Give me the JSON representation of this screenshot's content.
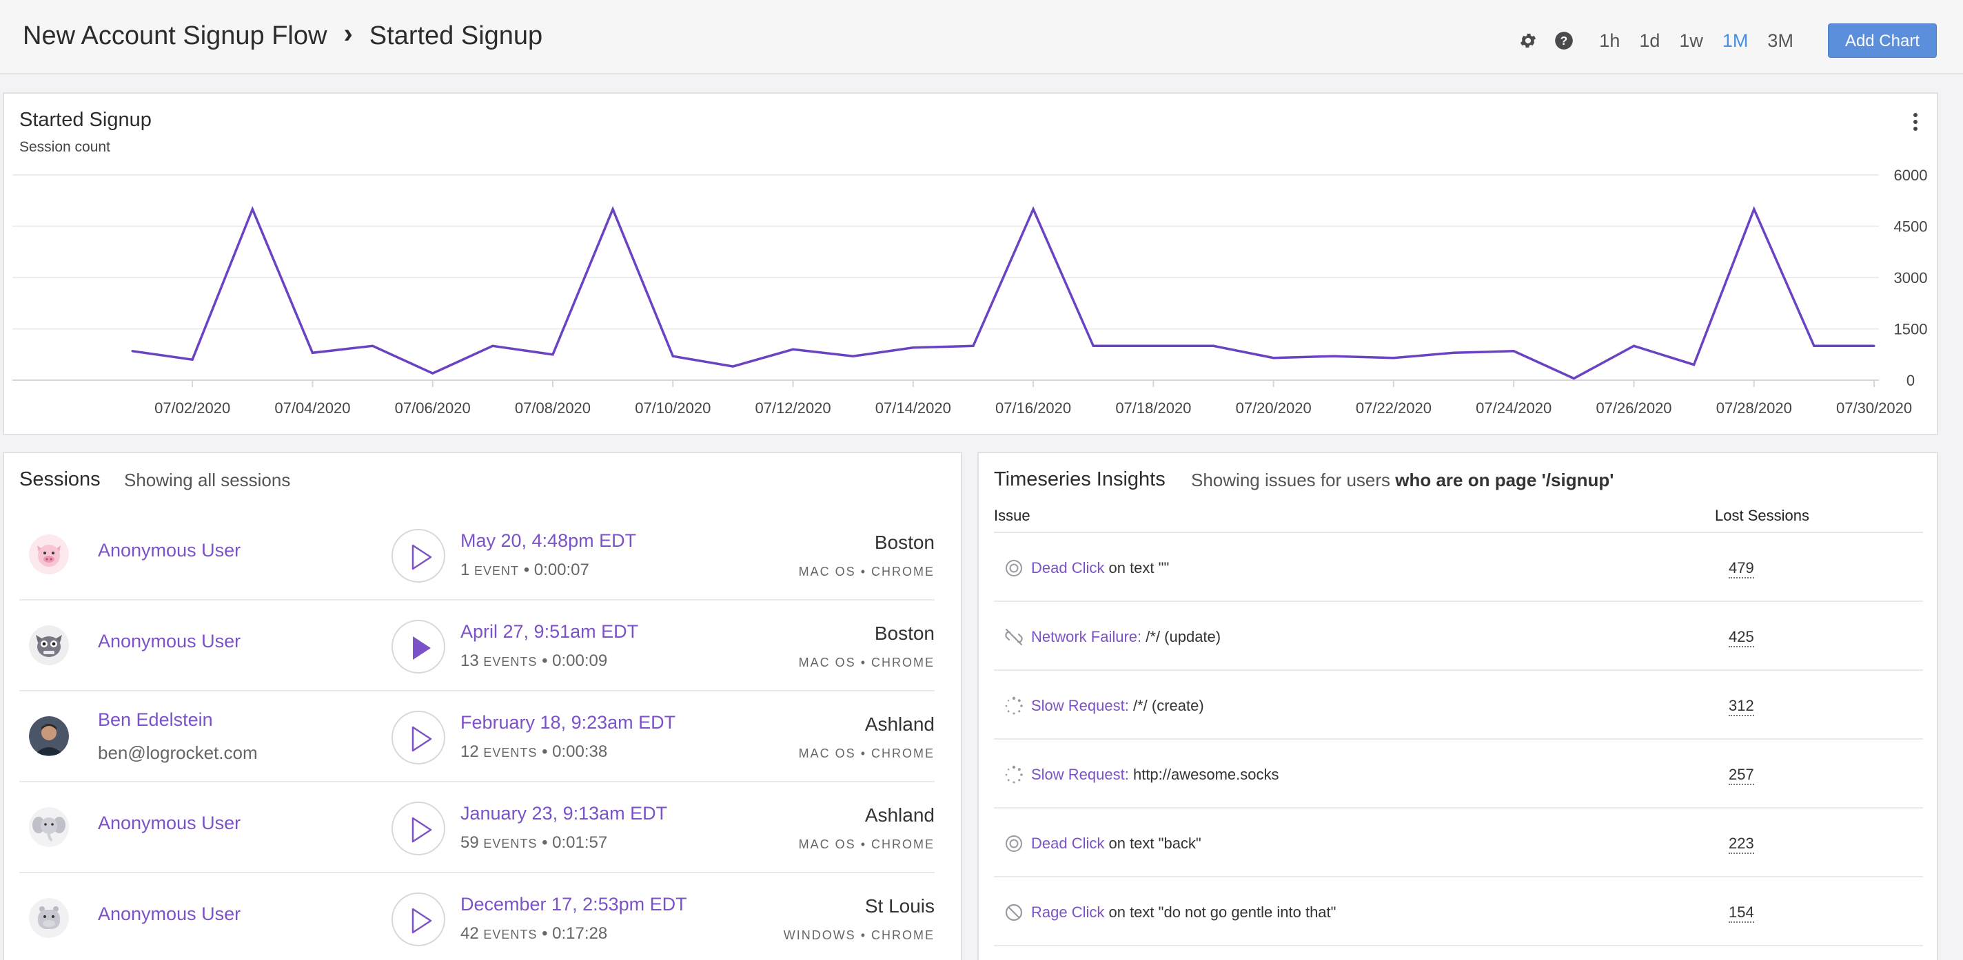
{
  "header": {
    "breadcrumb": [
      "New Account Signup Flow",
      "Started Signup"
    ],
    "ranges": [
      "1h",
      "1d",
      "1w",
      "1M",
      "3M"
    ],
    "active_range": "1M",
    "add_chart_label": "Add Chart",
    "accent_color": "#4a90e2"
  },
  "chart_card": {
    "title": "Started Signup",
    "subtitle": "Session count"
  },
  "chart_data": {
    "type": "line",
    "title": "Started Signup",
    "ylabel": "Session count",
    "ylim": [
      0,
      6000
    ],
    "yticks": [
      0,
      1500,
      3000,
      4500,
      6000
    ],
    "x_tick_labels": [
      "07/02/2020",
      "07/04/2020",
      "07/06/2020",
      "07/08/2020",
      "07/10/2020",
      "07/12/2020",
      "07/14/2020",
      "07/16/2020",
      "07/18/2020",
      "07/20/2020",
      "07/22/2020",
      "07/24/2020",
      "07/26/2020",
      "07/28/2020",
      "07/30/2020"
    ],
    "x": [
      "07/01/2020",
      "07/02/2020",
      "07/03/2020",
      "07/04/2020",
      "07/05/2020",
      "07/06/2020",
      "07/07/2020",
      "07/08/2020",
      "07/09/2020",
      "07/10/2020",
      "07/11/2020",
      "07/12/2020",
      "07/13/2020",
      "07/14/2020",
      "07/15/2020",
      "07/16/2020",
      "07/17/2020",
      "07/18/2020",
      "07/19/2020",
      "07/20/2020",
      "07/21/2020",
      "07/22/2020",
      "07/23/2020",
      "07/24/2020",
      "07/25/2020",
      "07/26/2020",
      "07/27/2020",
      "07/28/2020",
      "07/29/2020",
      "07/30/2020"
    ],
    "series": [
      {
        "values": [
          850,
          600,
          5000,
          800,
          1000,
          200,
          1000,
          750,
          5000,
          700,
          400,
          900,
          700,
          950,
          1000,
          5000,
          1000,
          1000,
          1000,
          650,
          700,
          650,
          800,
          850,
          50,
          1000,
          450,
          5000,
          1000,
          1000
        ],
        "color": "#6a43c2"
      }
    ],
    "grid": true,
    "y_axis_side": "right"
  },
  "sessions": {
    "title": "Sessions",
    "note": "Showing all sessions",
    "rows": [
      {
        "avatar": "pig-icon",
        "name": "Anonymous User",
        "email": "",
        "date": "May 20, 4:48pm EDT",
        "events": "1",
        "events_label": "EVENT",
        "duration": "0:00:07",
        "city": "Boston",
        "os": "MAC OS",
        "browser": "CHROME",
        "play_filled": false
      },
      {
        "avatar": "hippo-icon",
        "name": "Anonymous User",
        "email": "",
        "date": "April 27, 9:51am EDT",
        "events": "13",
        "events_label": "EVENTS",
        "duration": "0:00:09",
        "city": "Boston",
        "os": "MAC OS",
        "browser": "CHROME",
        "play_filled": true
      },
      {
        "avatar": "user-photo",
        "name": "Ben Edelstein",
        "email": "ben@logrocket.com",
        "date": "February 18, 9:23am EDT",
        "events": "12",
        "events_label": "EVENTS",
        "duration": "0:00:38",
        "city": "Ashland",
        "os": "MAC OS",
        "browser": "CHROME",
        "play_filled": false
      },
      {
        "avatar": "elephant-icon",
        "name": "Anonymous User",
        "email": "",
        "date": "January 23, 9:13am EDT",
        "events": "59",
        "events_label": "EVENTS",
        "duration": "0:01:57",
        "city": "Ashland",
        "os": "MAC OS",
        "browser": "CHROME",
        "play_filled": false
      },
      {
        "avatar": "hippo-gray-icon",
        "name": "Anonymous User",
        "email": "",
        "date": "December 17, 2:53pm EDT",
        "events": "42",
        "events_label": "EVENTS",
        "duration": "0:17:28",
        "city": "St Louis",
        "os": "WINDOWS",
        "browser": "CHROME",
        "play_filled": false
      }
    ]
  },
  "insights": {
    "title": "Timeseries Insights",
    "note_prefix": "Showing issues for users",
    "note_bold": "who are on page '/signup'",
    "col_issue": "Issue",
    "col_lost": "Lost Sessions",
    "rows": [
      {
        "icon": "dead-click-icon",
        "type": "Dead Click",
        "detail": " on text \"\"",
        "count": "479"
      },
      {
        "icon": "network-failure-icon",
        "type": "Network Failure:",
        "detail": " /*/ (update)",
        "count": "425"
      },
      {
        "icon": "slow-request-icon",
        "type": "Slow Request:",
        "detail": " /*/ (create)",
        "count": "312"
      },
      {
        "icon": "slow-request-icon",
        "type": "Slow Request:",
        "detail": " http://awesome.socks",
        "count": "257"
      },
      {
        "icon": "dead-click-icon",
        "type": "Dead Click",
        "detail": " on text \"back\"",
        "count": "223"
      },
      {
        "icon": "rage-click-icon",
        "type": "Rage Click",
        "detail": " on text \"do not go gentle into that\"",
        "count": "154"
      }
    ]
  }
}
